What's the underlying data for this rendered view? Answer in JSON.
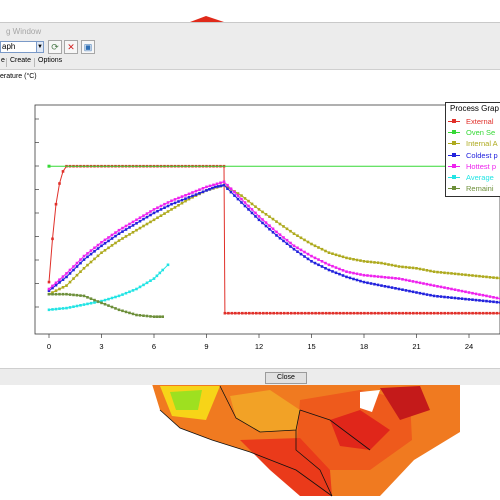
{
  "window": {
    "title": "g Window"
  },
  "toolbar": {
    "graph_select_value": "aph",
    "buttons": [
      {
        "name": "refresh-icon",
        "glyph": "⟳",
        "color": "#4a7a4a"
      },
      {
        "name": "delete-icon",
        "glyph": "✕",
        "color": "#d02020"
      },
      {
        "name": "export-icon",
        "glyph": "▣",
        "color": "#2f6fb5"
      }
    ]
  },
  "menu": {
    "items": [
      "e",
      "Create",
      "Options"
    ]
  },
  "buttons": {
    "close_label": "Close"
  },
  "chart_data": {
    "type": "line",
    "ylabel": "erature (°C)",
    "x_ticks": [
      "0",
      "3",
      "6",
      "9",
      "12",
      "15",
      "18",
      "21",
      "24"
    ],
    "legend_title": "Process Grap",
    "series": [
      {
        "name": "External",
        "color": "#e0302a",
        "marker": "square",
        "points": [
          [
            0,
            30
          ],
          [
            0.2,
            55
          ],
          [
            0.4,
            75
          ],
          [
            0.6,
            87
          ],
          [
            0.8,
            94
          ],
          [
            1.0,
            97
          ],
          [
            10,
            97
          ],
          [
            10.05,
            12
          ],
          [
            26,
            12
          ]
        ]
      },
      {
        "name": "Oven Se",
        "color": "#36d936",
        "marker": "none",
        "points": [
          [
            0,
            97
          ],
          [
            26,
            97
          ]
        ]
      },
      {
        "name": "Internal A",
        "color": "#aeaa1e",
        "marker": "square",
        "points": [
          [
            0,
            23
          ],
          [
            1,
            28
          ],
          [
            2,
            38
          ],
          [
            3,
            47
          ],
          [
            4,
            54
          ],
          [
            5,
            60
          ],
          [
            6,
            66
          ],
          [
            7,
            72
          ],
          [
            8,
            78
          ],
          [
            9,
            83
          ],
          [
            10,
            86
          ],
          [
            11,
            80
          ],
          [
            12,
            72
          ],
          [
            13,
            65
          ],
          [
            14,
            58
          ],
          [
            15,
            52
          ],
          [
            16,
            47
          ],
          [
            17,
            44
          ],
          [
            18,
            42
          ],
          [
            19,
            41
          ],
          [
            20,
            39
          ],
          [
            21,
            38
          ],
          [
            22,
            36
          ],
          [
            23,
            35
          ],
          [
            24,
            34
          ],
          [
            25,
            33
          ],
          [
            26,
            32
          ]
        ]
      },
      {
        "name": "Coldest p",
        "color": "#2222dd",
        "marker": "square",
        "points": [
          [
            0,
            25
          ],
          [
            1,
            33
          ],
          [
            2,
            43
          ],
          [
            3,
            51
          ],
          [
            4,
            58
          ],
          [
            5,
            64
          ],
          [
            6,
            70
          ],
          [
            7,
            75
          ],
          [
            8,
            79
          ],
          [
            9,
            83
          ],
          [
            9.5,
            85
          ],
          [
            10,
            86
          ],
          [
            11,
            76
          ],
          [
            12,
            66
          ],
          [
            13,
            57
          ],
          [
            14,
            49
          ],
          [
            15,
            42
          ],
          [
            16,
            37
          ],
          [
            17,
            33
          ],
          [
            18,
            30
          ],
          [
            19,
            28
          ],
          [
            20,
            26
          ],
          [
            21,
            24
          ],
          [
            22,
            22
          ],
          [
            23,
            21
          ],
          [
            24,
            20
          ],
          [
            25,
            19
          ],
          [
            26,
            18
          ]
        ]
      },
      {
        "name": "Hottest p",
        "color": "#ee22ee",
        "marker": "square",
        "points": [
          [
            0,
            26
          ],
          [
            1,
            35
          ],
          [
            2,
            45
          ],
          [
            3,
            53
          ],
          [
            4,
            60
          ],
          [
            5,
            66
          ],
          [
            6,
            72
          ],
          [
            7,
            77
          ],
          [
            8,
            81
          ],
          [
            9,
            85
          ],
          [
            10,
            88
          ],
          [
            11,
            78
          ],
          [
            12,
            68
          ],
          [
            13,
            59
          ],
          [
            14,
            51
          ],
          [
            15,
            45
          ],
          [
            16,
            40
          ],
          [
            17,
            36
          ],
          [
            18,
            34
          ],
          [
            19,
            33
          ],
          [
            20,
            32
          ],
          [
            21,
            30
          ],
          [
            22,
            28
          ],
          [
            23,
            26
          ],
          [
            24,
            24
          ],
          [
            25,
            22
          ],
          [
            26,
            20
          ]
        ]
      },
      {
        "name": "Average",
        "color": "#22e4e4",
        "marker": "square",
        "points": [
          [
            0,
            14
          ],
          [
            1,
            15
          ],
          [
            2,
            17
          ],
          [
            3,
            19
          ],
          [
            4,
            22
          ],
          [
            5,
            26
          ],
          [
            6,
            32
          ],
          [
            6.5,
            37
          ],
          [
            6.8,
            40
          ]
        ]
      },
      {
        "name": "Remaini",
        "color": "#6d8f3a",
        "marker": "square",
        "points": [
          [
            0,
            23
          ],
          [
            1,
            23
          ],
          [
            2,
            22
          ],
          [
            3,
            18
          ],
          [
            4,
            14
          ],
          [
            5,
            11
          ],
          [
            6,
            10
          ],
          [
            6.5,
            10
          ]
        ]
      }
    ]
  }
}
